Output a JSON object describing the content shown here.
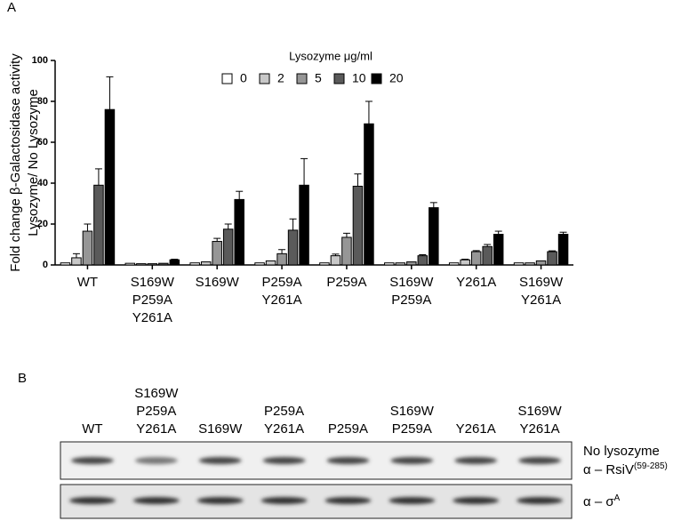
{
  "panels": [
    "A",
    "B"
  ],
  "chart_data": {
    "type": "bar",
    "y_label": [
      "Fold change β-Galactosidase activity",
      "Lysozyme/ No Lysozyme"
    ],
    "legend_title": "Lysozyme μg/ml",
    "categories": [
      "WT",
      "S169W\nP259A\nY261A",
      "S169W",
      "P259A\nY261A",
      "P259A",
      "S169W\nP259A",
      "Y261A",
      "S169W\nY261A"
    ],
    "series": [
      {
        "name": "0",
        "color": "#ffffff",
        "values": [
          1,
          0.8,
          1,
          1,
          1,
          1,
          1,
          1
        ],
        "errors": [
          null,
          null,
          null,
          null,
          null,
          null,
          null,
          null
        ]
      },
      {
        "name": "2",
        "color": "#c8c8c8",
        "values": [
          3.5,
          0.6,
          1.5,
          2,
          4.5,
          1,
          2.5,
          1
        ],
        "errors": [
          2,
          null,
          null,
          null,
          0.8,
          null,
          0.3,
          null
        ]
      },
      {
        "name": "5",
        "color": "#969696",
        "values": [
          16.5,
          0.6,
          11.5,
          5.5,
          13.5,
          1.5,
          6.5,
          2
        ],
        "errors": [
          3.5,
          null,
          1.5,
          2,
          2,
          null,
          0.5,
          null
        ]
      },
      {
        "name": "10",
        "color": "#5a5a5a",
        "values": [
          39,
          0.8,
          17.5,
          17,
          38.5,
          4.5,
          9,
          6.5
        ],
        "errors": [
          8,
          null,
          2.5,
          5.5,
          6,
          0.5,
          1,
          0.4
        ]
      },
      {
        "name": "20",
        "color": "#000000",
        "values": [
          76,
          2.5,
          32,
          39,
          69,
          28,
          15,
          15
        ],
        "errors": [
          16,
          0.3,
          4,
          13,
          11,
          2.5,
          1.5,
          1
        ]
      }
    ],
    "ylim": [
      0,
      100
    ],
    "yticks": [
      0,
      20,
      40,
      60,
      80,
      100
    ]
  },
  "blot": {
    "lanes": [
      "WT",
      "S169W\nP259A\nY261A",
      "S169W",
      "P259A\nY261A",
      "P259A",
      "S169W\nP259A",
      "Y261A",
      "S169W\nY261A"
    ],
    "condition": "No lysozyme",
    "rsiv": "α – RsiV",
    "rsiv_sup": "(59-285)",
    "sigma": "α – σ",
    "sigma_sup": "A"
  }
}
